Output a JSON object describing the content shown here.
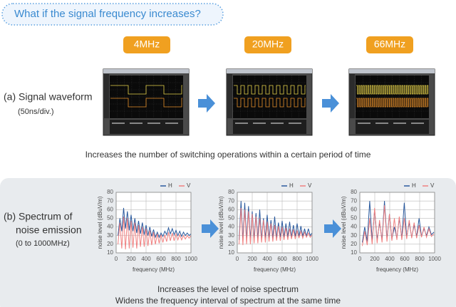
{
  "header": {
    "title": "What if the signal frequency increases?"
  },
  "frequencies": [
    "4MHz",
    "20MHz",
    "66MHz"
  ],
  "waveform_row": {
    "label": "(a) Signal waveform",
    "sublabel": "(50ns/div.)",
    "caption": "Increases the number of switching operations within a certain period of time"
  },
  "spectrum_row": {
    "label_lines": [
      "(b) Spectrum of",
      "noise emission",
      "(0 to 1000MHz)"
    ],
    "caption_lines": [
      "Increases the level of noise spectrum",
      "Widens the frequency interval of spectrum at the same time"
    ]
  },
  "chart_data": [
    {
      "type": "line",
      "x_label": "frequency (MHz)",
      "y_label": "noise level (dBuV/m)",
      "xlim": [
        0,
        1000
      ],
      "ylim": [
        10,
        80
      ],
      "xticks": [
        0,
        200,
        400,
        600,
        800,
        1000
      ],
      "yticks": [
        10,
        20,
        30,
        40,
        50,
        60,
        70,
        80
      ],
      "grid": true,
      "x": [
        25,
        50,
        75,
        100,
        125,
        150,
        175,
        200,
        225,
        250,
        275,
        300,
        325,
        350,
        375,
        400,
        425,
        450,
        475,
        500,
        525,
        550,
        575,
        600,
        625,
        650,
        675,
        700,
        725,
        750,
        775,
        800,
        825,
        850,
        875,
        900,
        925,
        950,
        975,
        1000
      ],
      "series": [
        {
          "name": "H",
          "color": "#2a5a9e",
          "values": [
            30,
            50,
            35,
            62,
            38,
            58,
            36,
            54,
            35,
            50,
            33,
            47,
            32,
            45,
            31,
            42,
            30,
            40,
            29,
            37,
            28,
            34,
            28,
            33,
            29,
            35,
            31,
            39,
            32,
            38,
            31,
            36,
            30,
            35,
            29,
            34,
            30,
            33,
            30,
            32
          ]
        },
        {
          "name": "V",
          "color": "#f08080",
          "values": [
            20,
            45,
            15,
            52,
            14,
            50,
            15,
            47,
            16,
            45,
            15,
            42,
            17,
            40,
            17,
            38,
            18,
            36,
            19,
            34,
            20,
            32,
            21,
            31,
            22,
            31,
            23,
            34,
            24,
            33,
            24,
            32,
            25,
            31,
            25,
            30,
            26,
            30,
            27,
            30
          ]
        }
      ]
    },
    {
      "type": "line",
      "x_label": "frequency (MHz)",
      "y_label": "noise level (dBuV/m)",
      "xlim": [
        0,
        1000
      ],
      "ylim": [
        10,
        80
      ],
      "xticks": [
        0,
        200,
        400,
        600,
        800,
        1000
      ],
      "yticks": [
        10,
        20,
        30,
        40,
        50,
        60,
        70,
        80
      ],
      "grid": true,
      "x": [
        25,
        50,
        75,
        100,
        125,
        150,
        175,
        200,
        225,
        250,
        275,
        300,
        325,
        350,
        375,
        400,
        425,
        450,
        475,
        500,
        525,
        550,
        575,
        600,
        625,
        650,
        675,
        700,
        725,
        750,
        775,
        800,
        825,
        850,
        875,
        900,
        925,
        950,
        975,
        1000
      ],
      "series": [
        {
          "name": "H",
          "color": "#2a5a9e",
          "values": [
            25,
            70,
            24,
            68,
            25,
            64,
            25,
            58,
            26,
            56,
            26,
            60,
            26,
            50,
            27,
            54,
            27,
            48,
            27,
            52,
            27,
            45,
            28,
            47,
            28,
            44,
            28,
            46,
            28,
            42,
            29,
            44,
            29,
            41,
            29,
            38,
            29,
            38,
            30,
            33
          ]
        },
        {
          "name": "V",
          "color": "#f08080",
          "values": [
            20,
            62,
            19,
            60,
            20,
            58,
            20,
            55,
            21,
            52,
            21,
            50,
            22,
            48,
            22,
            46,
            23,
            44,
            23,
            42,
            24,
            41,
            24,
            40,
            25,
            39,
            25,
            38,
            26,
            37,
            26,
            36,
            27,
            35,
            27,
            34,
            28,
            33,
            28,
            31
          ]
        }
      ]
    },
    {
      "type": "line",
      "x_label": "frequency (MHz)",
      "y_label": "noise level (dBuV/m)",
      "xlim": [
        0,
        1000
      ],
      "ylim": [
        10,
        80
      ],
      "xticks": [
        0,
        200,
        400,
        600,
        800,
        1000
      ],
      "yticks": [
        10,
        20,
        30,
        40,
        50,
        60,
        70,
        80
      ],
      "grid": true,
      "x": [
        33,
        66,
        99,
        132,
        165,
        198,
        231,
        264,
        297,
        330,
        363,
        396,
        429,
        462,
        495,
        528,
        561,
        594,
        627,
        660,
        693,
        726,
        759,
        792,
        825,
        858,
        891,
        924,
        957,
        990
      ],
      "series": [
        {
          "name": "H",
          "color": "#2a5a9e",
          "values": [
            22,
            40,
            23,
            70,
            24,
            60,
            25,
            45,
            25,
            70,
            26,
            55,
            26,
            40,
            27,
            50,
            27,
            68,
            28,
            45,
            28,
            42,
            29,
            50,
            29,
            38,
            30,
            40,
            31,
            34
          ]
        },
        {
          "name": "V",
          "color": "#f08080",
          "values": [
            18,
            35,
            19,
            50,
            20,
            62,
            21,
            48,
            22,
            65,
            23,
            55,
            24,
            50,
            25,
            52,
            25,
            50,
            26,
            48,
            27,
            45,
            27,
            42,
            28,
            40,
            28,
            38,
            29,
            32
          ]
        }
      ]
    }
  ]
}
